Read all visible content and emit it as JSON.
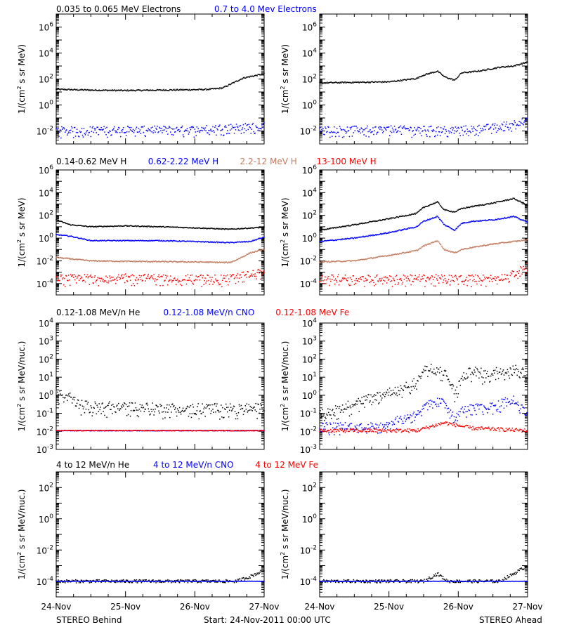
{
  "colors": {
    "black": "#000000",
    "blue": "#0000ff",
    "brown": "#c07b5e",
    "red": "#ff0000"
  },
  "legends": [
    [
      {
        "text": "0.035 to 0.065 MeV Electrons",
        "color": "#000000"
      },
      {
        "text": "0.7 to 4.0 Mev Electrons",
        "color": "#0000ff"
      }
    ],
    [
      {
        "text": "0.14-0.62 MeV H",
        "color": "#000000"
      },
      {
        "text": "0.62-2.22 MeV H",
        "color": "#0000ff"
      },
      {
        "text": "2.2-12 MeV H",
        "color": "#c07b5e"
      },
      {
        "text": "13-100 MeV H",
        "color": "#ff0000"
      }
    ],
    [
      {
        "text": "0.12-1.08 MeV/n He",
        "color": "#000000"
      },
      {
        "text": "0.12-1.08 MeV/n CNO",
        "color": "#0000ff"
      },
      {
        "text": "0.12-1.08 MeV Fe",
        "color": "#ff0000"
      }
    ],
    [
      {
        "text": "4 to 12 MeV/n He",
        "color": "#000000"
      },
      {
        "text": "4 to 12 MeV/n CNO",
        "color": "#0000ff"
      },
      {
        "text": "4 to 12 MeV Fe",
        "color": "#ff0000"
      }
    ]
  ],
  "footer": {
    "left": "STEREO Behind",
    "center": "Start: 24-Nov-2011 00:00 UTC",
    "right": "STEREO Ahead"
  },
  "chart_data": [
    {
      "type": "scatter",
      "row": 1,
      "spacecraft": "Behind",
      "ylabel": "1/(cm² s sr MeV)",
      "yscale": "log",
      "ylim": [
        0.001,
        10000000
      ],
      "yticks": [
        [
          -2,
          "10-2"
        ],
        [
          0,
          "100"
        ],
        [
          2,
          "102"
        ],
        [
          4,
          "104"
        ],
        [
          6,
          "106"
        ]
      ],
      "xticks": [
        "24-Nov",
        "25-Nov",
        "26-Nov",
        "27-Nov"
      ],
      "xlim": [
        0,
        3
      ],
      "series": [
        {
          "color": "#000000",
          "x": [
            0,
            0.5,
            1.0,
            1.5,
            2.0,
            2.2,
            2.4,
            2.7,
            3.0
          ],
          "y": [
            16,
            14,
            13,
            14,
            15,
            16,
            20,
            120,
            250
          ],
          "scatter": 0.05
        },
        {
          "color": "#0000ff",
          "x": [
            0,
            1.0,
            2.0,
            2.5,
            3.0
          ],
          "y": [
            0.012,
            0.013,
            0.014,
            0.02,
            0.025
          ],
          "scatter": 0.25
        }
      ]
    },
    {
      "type": "scatter",
      "row": 1,
      "spacecraft": "Ahead",
      "ylabel": "1/(cm² s sr MeV)",
      "yscale": "log",
      "ylim": [
        0.001,
        10000000
      ],
      "yticks": [
        [
          -2,
          "10-2"
        ],
        [
          0,
          "100"
        ],
        [
          2,
          "102"
        ],
        [
          4,
          "104"
        ],
        [
          6,
          "106"
        ]
      ],
      "xticks": [
        "24-Nov",
        "25-Nov",
        "26-Nov",
        "27-Nov"
      ],
      "xlim": [
        0,
        3
      ],
      "series": [
        {
          "color": "#000000",
          "x": [
            0,
            0.5,
            1.0,
            1.4,
            1.5,
            1.7,
            1.8,
            1.95,
            2.05,
            2.2,
            2.4,
            2.6,
            2.8,
            3.0
          ],
          "y": [
            50,
            55,
            60,
            110,
            200,
            400,
            150,
            80,
            300,
            350,
            500,
            800,
            1000,
            2000
          ],
          "scatter": 0.05
        },
        {
          "color": "#0000ff",
          "x": [
            0,
            1.0,
            2.0,
            2.5,
            2.8,
            3.0
          ],
          "y": [
            0.013,
            0.014,
            0.013,
            0.02,
            0.04,
            0.06
          ],
          "scatter": 0.25
        }
      ]
    },
    {
      "type": "scatter",
      "row": 2,
      "spacecraft": "Behind",
      "ylabel": "1/(cm² s sr MeV)",
      "yscale": "log",
      "ylim": [
        1e-05,
        1000000
      ],
      "yticks": [
        [
          -4,
          "10-4"
        ],
        [
          -2,
          "10-2"
        ],
        [
          0,
          "100"
        ],
        [
          2,
          "102"
        ],
        [
          4,
          "104"
        ],
        [
          6,
          "106"
        ]
      ],
      "xticks": [
        "24-Nov",
        "25-Nov",
        "26-Nov",
        "27-Nov"
      ],
      "xlim": [
        0,
        3
      ],
      "series": [
        {
          "color": "#000000",
          "x": [
            0,
            0.2,
            0.5,
            1.0,
            1.5,
            2.0,
            2.5,
            3.0
          ],
          "y": [
            40,
            15,
            10,
            12,
            10,
            8,
            6,
            9
          ],
          "scatter": 0.04
        },
        {
          "color": "#0000ff",
          "x": [
            0,
            0.2,
            0.5,
            1.0,
            1.5,
            2.0,
            2.5,
            2.8,
            3.0
          ],
          "y": [
            2.0,
            1.5,
            0.6,
            0.6,
            0.6,
            0.5,
            0.4,
            0.5,
            1.2
          ],
          "scatter": 0.04
        },
        {
          "color": "#c07b5e",
          "x": [
            0,
            0.2,
            0.5,
            1.0,
            2.0,
            2.5,
            2.6,
            2.8,
            3.0
          ],
          "y": [
            0.02,
            0.015,
            0.01,
            0.009,
            0.008,
            0.007,
            0.012,
            0.05,
            0.1
          ],
          "scatter": 0.05
        },
        {
          "color": "#ff0000",
          "x": [
            0,
            1.0,
            2.0,
            2.5,
            2.7,
            3.0
          ],
          "y": [
            0.0003,
            0.00035,
            0.0003,
            0.0003,
            0.0006,
            0.001
          ],
          "scatter": 0.3
        }
      ]
    },
    {
      "type": "scatter",
      "row": 2,
      "spacecraft": "Ahead",
      "ylabel": "1/(cm² s sr MeV)",
      "yscale": "log",
      "ylim": [
        1e-05,
        1000000
      ],
      "yticks": [
        [
          -4,
          "10-4"
        ],
        [
          -2,
          "10-2"
        ],
        [
          0,
          "100"
        ],
        [
          2,
          "102"
        ],
        [
          4,
          "104"
        ],
        [
          6,
          "106"
        ]
      ],
      "xticks": [
        "24-Nov",
        "25-Nov",
        "26-Nov",
        "27-Nov"
      ],
      "xlim": [
        0,
        3
      ],
      "series": [
        {
          "color": "#000000",
          "x": [
            0,
            0.5,
            1.0,
            1.4,
            1.5,
            1.7,
            1.8,
            1.95,
            2.05,
            2.2,
            2.5,
            2.8,
            3.0
          ],
          "y": [
            5,
            15,
            50,
            150,
            500,
            1500,
            300,
            200,
            400,
            600,
            1200,
            3000,
            800
          ],
          "scatter": 0.05
        },
        {
          "color": "#0000ff",
          "x": [
            0,
            0.5,
            1.0,
            1.4,
            1.5,
            1.7,
            1.8,
            1.95,
            2.05,
            2.2,
            2.5,
            2.8,
            3.0
          ],
          "y": [
            0.5,
            1.0,
            3.0,
            10,
            30,
            80,
            15,
            5,
            20,
            30,
            40,
            80,
            25
          ],
          "scatter": 0.05
        },
        {
          "color": "#c07b5e",
          "x": [
            0,
            0.5,
            1.0,
            1.4,
            1.5,
            1.7,
            1.8,
            1.95,
            2.05,
            2.2,
            2.5,
            2.8,
            3.0
          ],
          "y": [
            0.008,
            0.01,
            0.03,
            0.08,
            0.2,
            0.6,
            0.1,
            0.05,
            0.1,
            0.15,
            0.3,
            0.5,
            0.7
          ],
          "scatter": 0.05
        },
        {
          "color": "#ff0000",
          "x": [
            0,
            1.0,
            2.0,
            2.5,
            2.7,
            2.85,
            3.0
          ],
          "y": [
            0.0003,
            0.0003,
            0.0003,
            0.0003,
            0.0004,
            0.001,
            0.004
          ],
          "scatter": 0.3
        }
      ]
    },
    {
      "type": "scatter",
      "row": 3,
      "spacecraft": "Behind",
      "ylabel": "1/(cm² s sr MeV/nuc.)",
      "yscale": "log",
      "ylim": [
        0.001,
        10000
      ],
      "yticks": [
        [
          -3,
          "10-3"
        ],
        [
          -2,
          "10-2"
        ],
        [
          -1,
          "10-1"
        ],
        [
          0,
          "100"
        ],
        [
          1,
          "101"
        ],
        [
          2,
          "102"
        ],
        [
          3,
          "103"
        ],
        [
          4,
          "104"
        ]
      ],
      "xticks": [
        "24-Nov",
        "25-Nov",
        "26-Nov",
        "27-Nov"
      ],
      "xlim": [
        0,
        3
      ],
      "series": [
        {
          "color": "#000000",
          "x": [
            0,
            0.1,
            0.2,
            0.3,
            0.5,
            1.0,
            1.5,
            2.0,
            2.5,
            3.0
          ],
          "y": [
            1.5,
            1.2,
            0.8,
            0.35,
            0.25,
            0.25,
            0.2,
            0.2,
            0.2,
            0.2
          ],
          "scatter": 0.25
        },
        {
          "color": "#0000ff",
          "x": [
            0,
            3.0
          ],
          "y": [
            0.011,
            0.011
          ],
          "scatter": 0.02
        },
        {
          "color": "#ff0000",
          "x": [
            0,
            3.0
          ],
          "y": [
            0.011,
            0.011
          ],
          "scatter": 0.02
        }
      ]
    },
    {
      "type": "scatter",
      "row": 3,
      "spacecraft": "Ahead",
      "ylabel": "1/(cm² s sr MeV/nuc.)",
      "yscale": "log",
      "ylim": [
        0.001,
        10000
      ],
      "yticks": [
        [
          -3,
          "10-3"
        ],
        [
          -2,
          "10-2"
        ],
        [
          -1,
          "10-1"
        ],
        [
          0,
          "100"
        ],
        [
          1,
          "101"
        ],
        [
          2,
          "102"
        ],
        [
          3,
          "103"
        ],
        [
          4,
          "104"
        ]
      ],
      "xticks": [
        "24-Nov",
        "25-Nov",
        "26-Nov",
        "27-Nov"
      ],
      "xlim": [
        0,
        3
      ],
      "series": [
        {
          "color": "#000000",
          "x": [
            0,
            0.3,
            0.6,
            1.0,
            1.4,
            1.5,
            1.6,
            1.8,
            1.95,
            2.05,
            2.2,
            2.4,
            2.7,
            2.85,
            3.0
          ],
          "y": [
            0.08,
            0.2,
            0.5,
            1.5,
            6,
            25,
            30,
            20,
            1.5,
            8,
            25,
            15,
            30,
            40,
            10
          ],
          "scatter": 0.25
        },
        {
          "color": "#0000ff",
          "x": [
            0,
            0.8,
            1.0,
            1.4,
            1.6,
            1.8,
            1.95,
            2.05,
            2.2,
            2.5,
            2.8,
            3.0
          ],
          "y": [
            0.02,
            0.02,
            0.03,
            0.1,
            0.4,
            0.5,
            0.05,
            0.15,
            0.2,
            0.25,
            0.7,
            0.1
          ],
          "scatter": 0.2
        },
        {
          "color": "#ff0000",
          "x": [
            0,
            1.4,
            1.8,
            2.2,
            3.0
          ],
          "y": [
            0.011,
            0.011,
            0.03,
            0.015,
            0.011
          ],
          "scatter": 0.1
        }
      ]
    },
    {
      "type": "scatter",
      "row": 4,
      "spacecraft": "Behind",
      "ylabel": "1/(cm² s sr MeV/nuc.)",
      "yscale": "log",
      "ylim": [
        1e-05,
        1000
      ],
      "yticks": [
        [
          -4,
          "10-4"
        ],
        [
          -2,
          "10-2"
        ],
        [
          0,
          "100"
        ],
        [
          2,
          "102"
        ]
      ],
      "xticks": [
        "24-Nov",
        "25-Nov",
        "26-Nov",
        "27-Nov"
      ],
      "xlim": [
        0,
        3
      ],
      "series": [
        {
          "color": "#000000",
          "x": [
            0,
            2.6,
            2.8,
            3.0
          ],
          "y": [
            0.0001,
            0.0001,
            0.0002,
            0.0005
          ],
          "scatter": 0.1
        },
        {
          "color": "#0000ff",
          "x": [
            0,
            3.0
          ],
          "y": [
            0.0001,
            0.0001
          ],
          "scatter": 0.01
        }
      ]
    },
    {
      "type": "scatter",
      "row": 4,
      "spacecraft": "Ahead",
      "ylabel": "1/(cm² s sr MeV/nuc.)",
      "yscale": "log",
      "ylim": [
        1e-05,
        1000
      ],
      "yticks": [
        [
          -4,
          "10-4"
        ],
        [
          -2,
          "10-2"
        ],
        [
          0,
          "100"
        ],
        [
          2,
          "102"
        ]
      ],
      "xticks": [
        "24-Nov",
        "25-Nov",
        "26-Nov",
        "27-Nov"
      ],
      "xlim": [
        0,
        3
      ],
      "series": [
        {
          "color": "#000000",
          "x": [
            0,
            1.5,
            1.7,
            1.85,
            2.6,
            2.8,
            3.0
          ],
          "y": [
            0.0001,
            0.0001,
            0.0003,
            0.0001,
            0.0001,
            0.0003,
            0.001
          ],
          "scatter": 0.1
        },
        {
          "color": "#0000ff",
          "x": [
            0,
            3.0
          ],
          "y": [
            0.0001,
            0.0001
          ],
          "scatter": 0.01
        }
      ]
    }
  ]
}
